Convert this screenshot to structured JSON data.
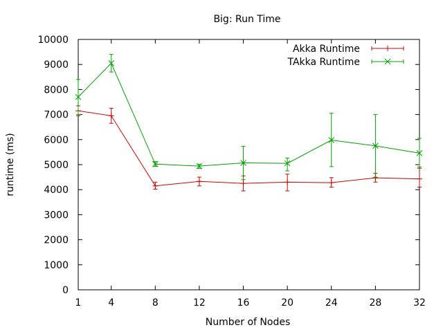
{
  "chart_data": {
    "type": "line",
    "title": "Big: Run Time",
    "xlabel": "Number of Nodes",
    "ylabel": "runtime (ms)",
    "x": [
      1,
      4,
      8,
      12,
      16,
      20,
      24,
      28,
      32
    ],
    "xticks": [
      "1",
      "4",
      "8",
      "12",
      "16",
      "20",
      "24",
      "28",
      "32"
    ],
    "xlim": [
      1,
      32
    ],
    "ylim": [
      0,
      10000
    ],
    "yticks": [
      "0",
      "1000",
      "2000",
      "3000",
      "4000",
      "5000",
      "6000",
      "7000",
      "8000",
      "9000",
      "10000"
    ],
    "grid": false,
    "legend": "top-right",
    "series": [
      {
        "name": "Akka Runtime",
        "color": "#cc0000",
        "marker": "plus",
        "values": [
          7150,
          6950,
          4150,
          4330,
          4250,
          4300,
          4280,
          4470,
          4430
        ],
        "err_low": [
          6950,
          6650,
          4020,
          4150,
          3950,
          3950,
          4100,
          4300,
          4100
        ],
        "err_high": [
          7350,
          7250,
          4300,
          4500,
          4550,
          4620,
          4480,
          4650,
          4900
        ]
      },
      {
        "name": "TAkka Runtime",
        "color": "#00a000",
        "marker": "x",
        "values": [
          7700,
          9050,
          5020,
          4940,
          5070,
          5050,
          5980,
          5750,
          5460
        ],
        "err_low": [
          7000,
          8700,
          4930,
          4850,
          4400,
          4750,
          4920,
          4500,
          4850
        ],
        "err_high": [
          8400,
          9400,
          5120,
          5020,
          5730,
          5260,
          7050,
          7000,
          6050
        ]
      }
    ]
  }
}
